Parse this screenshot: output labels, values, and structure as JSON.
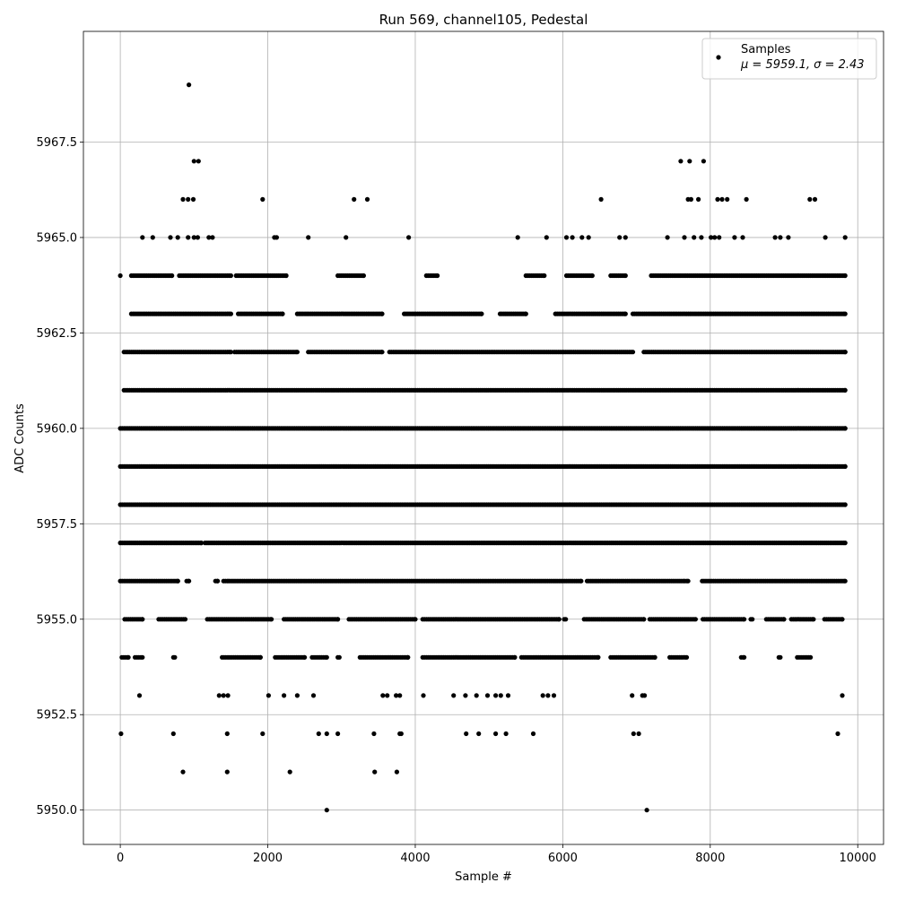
{
  "chart_data": {
    "type": "scatter",
    "title": "Run 569, channel105, Pedestal",
    "xlabel": "Sample #",
    "ylabel": "ADC Counts",
    "xlim": [
      -500,
      10350
    ],
    "ylim": [
      5949.1,
      5970.4
    ],
    "xticks": [
      0,
      2000,
      4000,
      6000,
      8000,
      10000
    ],
    "xtick_labels": [
      "0",
      "2000",
      "4000",
      "6000",
      "8000",
      "10000"
    ],
    "yticks": [
      5950.0,
      5952.5,
      5955.0,
      5957.5,
      5960.0,
      5962.5,
      5965.0,
      5967.5
    ],
    "ytick_labels": [
      "5950.0",
      "5952.5",
      "5955.0",
      "5957.5",
      "5960.0",
      "5962.5",
      "5965.0",
      "5967.5"
    ],
    "grid": true,
    "legend": {
      "placement": "top-right",
      "series_label": "Samples",
      "stats_label": "μ = 5959.1, σ = 2.43"
    },
    "marker_color": "#000000",
    "n_samples": 9850,
    "series": [
      {
        "name": "Samples",
        "points": [
          [
            0,
            5964
          ],
          [
            10,
            5952
          ],
          [
            930,
            5969
          ],
          [
            1000,
            5967
          ],
          [
            1060,
            5967
          ],
          [
            850,
            5966
          ],
          [
            920,
            5966
          ],
          [
            990,
            5966
          ],
          [
            1930,
            5966
          ],
          [
            3170,
            5966
          ],
          [
            3350,
            5966
          ],
          [
            6520,
            5966
          ],
          [
            7600,
            5967
          ],
          [
            7720,
            5967
          ],
          [
            7910,
            5967
          ],
          [
            7700,
            5966
          ],
          [
            7740,
            5966
          ],
          [
            7840,
            5966
          ],
          [
            8100,
            5966
          ],
          [
            8160,
            5966
          ],
          [
            8230,
            5966
          ],
          [
            8490,
            5966
          ],
          [
            9350,
            5966
          ],
          [
            9420,
            5966
          ],
          [
            300,
            5965
          ],
          [
            440,
            5965
          ],
          [
            680,
            5965
          ],
          [
            780,
            5965
          ],
          [
            920,
            5965
          ],
          [
            1000,
            5965
          ],
          [
            1050,
            5965
          ],
          [
            1200,
            5965
          ],
          [
            1250,
            5965
          ],
          [
            2090,
            5965
          ],
          [
            2120,
            5965
          ],
          [
            2550,
            5965
          ],
          [
            3060,
            5965
          ],
          [
            3910,
            5965
          ],
          [
            5390,
            5965
          ],
          [
            5780,
            5965
          ],
          [
            6050,
            5965
          ],
          [
            6130,
            5965
          ],
          [
            6260,
            5965
          ],
          [
            6350,
            5965
          ],
          [
            6770,
            5965
          ],
          [
            6850,
            5965
          ],
          [
            7420,
            5965
          ],
          [
            7650,
            5965
          ],
          [
            7780,
            5965
          ],
          [
            7880,
            5965
          ],
          [
            8010,
            5965
          ],
          [
            8060,
            5965
          ],
          [
            8120,
            5965
          ],
          [
            8330,
            5965
          ],
          [
            8440,
            5965
          ],
          [
            8880,
            5965
          ],
          [
            8950,
            5965
          ],
          [
            9060,
            5965
          ],
          [
            9560,
            5965
          ],
          [
            9830,
            5965
          ],
          [
            2800,
            5950
          ],
          [
            7140,
            5950
          ],
          [
            850,
            5951
          ],
          [
            1450,
            5951
          ],
          [
            2300,
            5951
          ],
          [
            3450,
            5951
          ],
          [
            3750,
            5951
          ],
          [
            720,
            5952
          ],
          [
            1450,
            5952
          ],
          [
            1930,
            5952
          ],
          [
            2690,
            5952
          ],
          [
            2800,
            5952
          ],
          [
            2950,
            5952
          ],
          [
            3440,
            5952
          ],
          [
            3790,
            5952
          ],
          [
            3810,
            5952
          ],
          [
            4690,
            5952
          ],
          [
            4860,
            5952
          ],
          [
            5090,
            5952
          ],
          [
            5230,
            5952
          ],
          [
            5600,
            5952
          ],
          [
            6960,
            5952
          ],
          [
            7030,
            5952
          ],
          [
            9730,
            5952
          ],
          [
            260,
            5953
          ],
          [
            1340,
            5953
          ],
          [
            1400,
            5953
          ],
          [
            1460,
            5953
          ],
          [
            2010,
            5953
          ],
          [
            2220,
            5953
          ],
          [
            2400,
            5953
          ],
          [
            2620,
            5953
          ],
          [
            3560,
            5953
          ],
          [
            3620,
            5953
          ],
          [
            3740,
            5953
          ],
          [
            3790,
            5953
          ],
          [
            4110,
            5953
          ],
          [
            4520,
            5953
          ],
          [
            4680,
            5953
          ],
          [
            4830,
            5953
          ],
          [
            4980,
            5953
          ],
          [
            5090,
            5953
          ],
          [
            5160,
            5953
          ],
          [
            5260,
            5953
          ],
          [
            5730,
            5953
          ],
          [
            5800,
            5953
          ],
          [
            5880,
            5953
          ],
          [
            6940,
            5953
          ],
          [
            7080,
            5953
          ],
          [
            7110,
            5953
          ],
          [
            9790,
            5953
          ]
        ],
        "bands": [
          {
            "y": 5954,
            "segments": [
              [
                20,
                110
              ],
              [
                200,
                300
              ],
              [
                720,
                740
              ],
              [
                1380,
                1900
              ],
              [
                2100,
                2500
              ],
              [
                2600,
                2800
              ],
              [
                2950,
                2970
              ],
              [
                3250,
                3900
              ],
              [
                4100,
                5350
              ],
              [
                5440,
                6480
              ],
              [
                6650,
                7250
              ],
              [
                7450,
                7680
              ],
              [
                8420,
                8460
              ],
              [
                8930,
                8950
              ],
              [
                9180,
                9360
              ]
            ]
          },
          {
            "y": 5955,
            "segments": [
              [
                60,
                300
              ],
              [
                520,
                880
              ],
              [
                1180,
                2050
              ],
              [
                2220,
                2950
              ],
              [
                3100,
                4000
              ],
              [
                4100,
                5950
              ],
              [
                6020,
                6040
              ],
              [
                6290,
                7100
              ],
              [
                7180,
                7800
              ],
              [
                7900,
                8460
              ],
              [
                8550,
                8570
              ],
              [
                8760,
                9000
              ],
              [
                9100,
                9400
              ],
              [
                9550,
                9790
              ]
            ]
          },
          {
            "y": 5956,
            "segments": [
              [
                0,
                780
              ],
              [
                900,
                930
              ],
              [
                1290,
                1320
              ],
              [
                1400,
                6250
              ],
              [
                6330,
                7700
              ],
              [
                7890,
                9830
              ]
            ]
          },
          {
            "y": 5957,
            "segments": [
              [
                0,
                1100
              ],
              [
                1150,
                9830
              ]
            ]
          },
          {
            "y": 5958,
            "segments": [
              [
                0,
                9830
              ]
            ]
          },
          {
            "y": 5959,
            "segments": [
              [
                0,
                9830
              ]
            ]
          },
          {
            "y": 5960,
            "segments": [
              [
                0,
                9830
              ]
            ]
          },
          {
            "y": 5961,
            "segments": [
              [
                50,
                9830
              ]
            ]
          },
          {
            "y": 5962,
            "segments": [
              [
                50,
                1500
              ],
              [
                1550,
                2400
              ],
              [
                2550,
                3550
              ],
              [
                3650,
                6950
              ],
              [
                7100,
                9830
              ]
            ]
          },
          {
            "y": 5963,
            "segments": [
              [
                150,
                1500
              ],
              [
                1600,
                2200
              ],
              [
                2400,
                3550
              ],
              [
                3850,
                4900
              ],
              [
                5150,
                5500
              ],
              [
                5900,
                6850
              ],
              [
                6950,
                9830
              ]
            ]
          },
          {
            "y": 5964,
            "segments": [
              [
                150,
                700
              ],
              [
                800,
                1500
              ],
              [
                1570,
                2250
              ],
              [
                2950,
                3300
              ],
              [
                4150,
                4300
              ],
              [
                5500,
                5750
              ],
              [
                6050,
                6400
              ],
              [
                6650,
                6850
              ],
              [
                7200,
                9830
              ]
            ]
          }
        ]
      }
    ]
  }
}
